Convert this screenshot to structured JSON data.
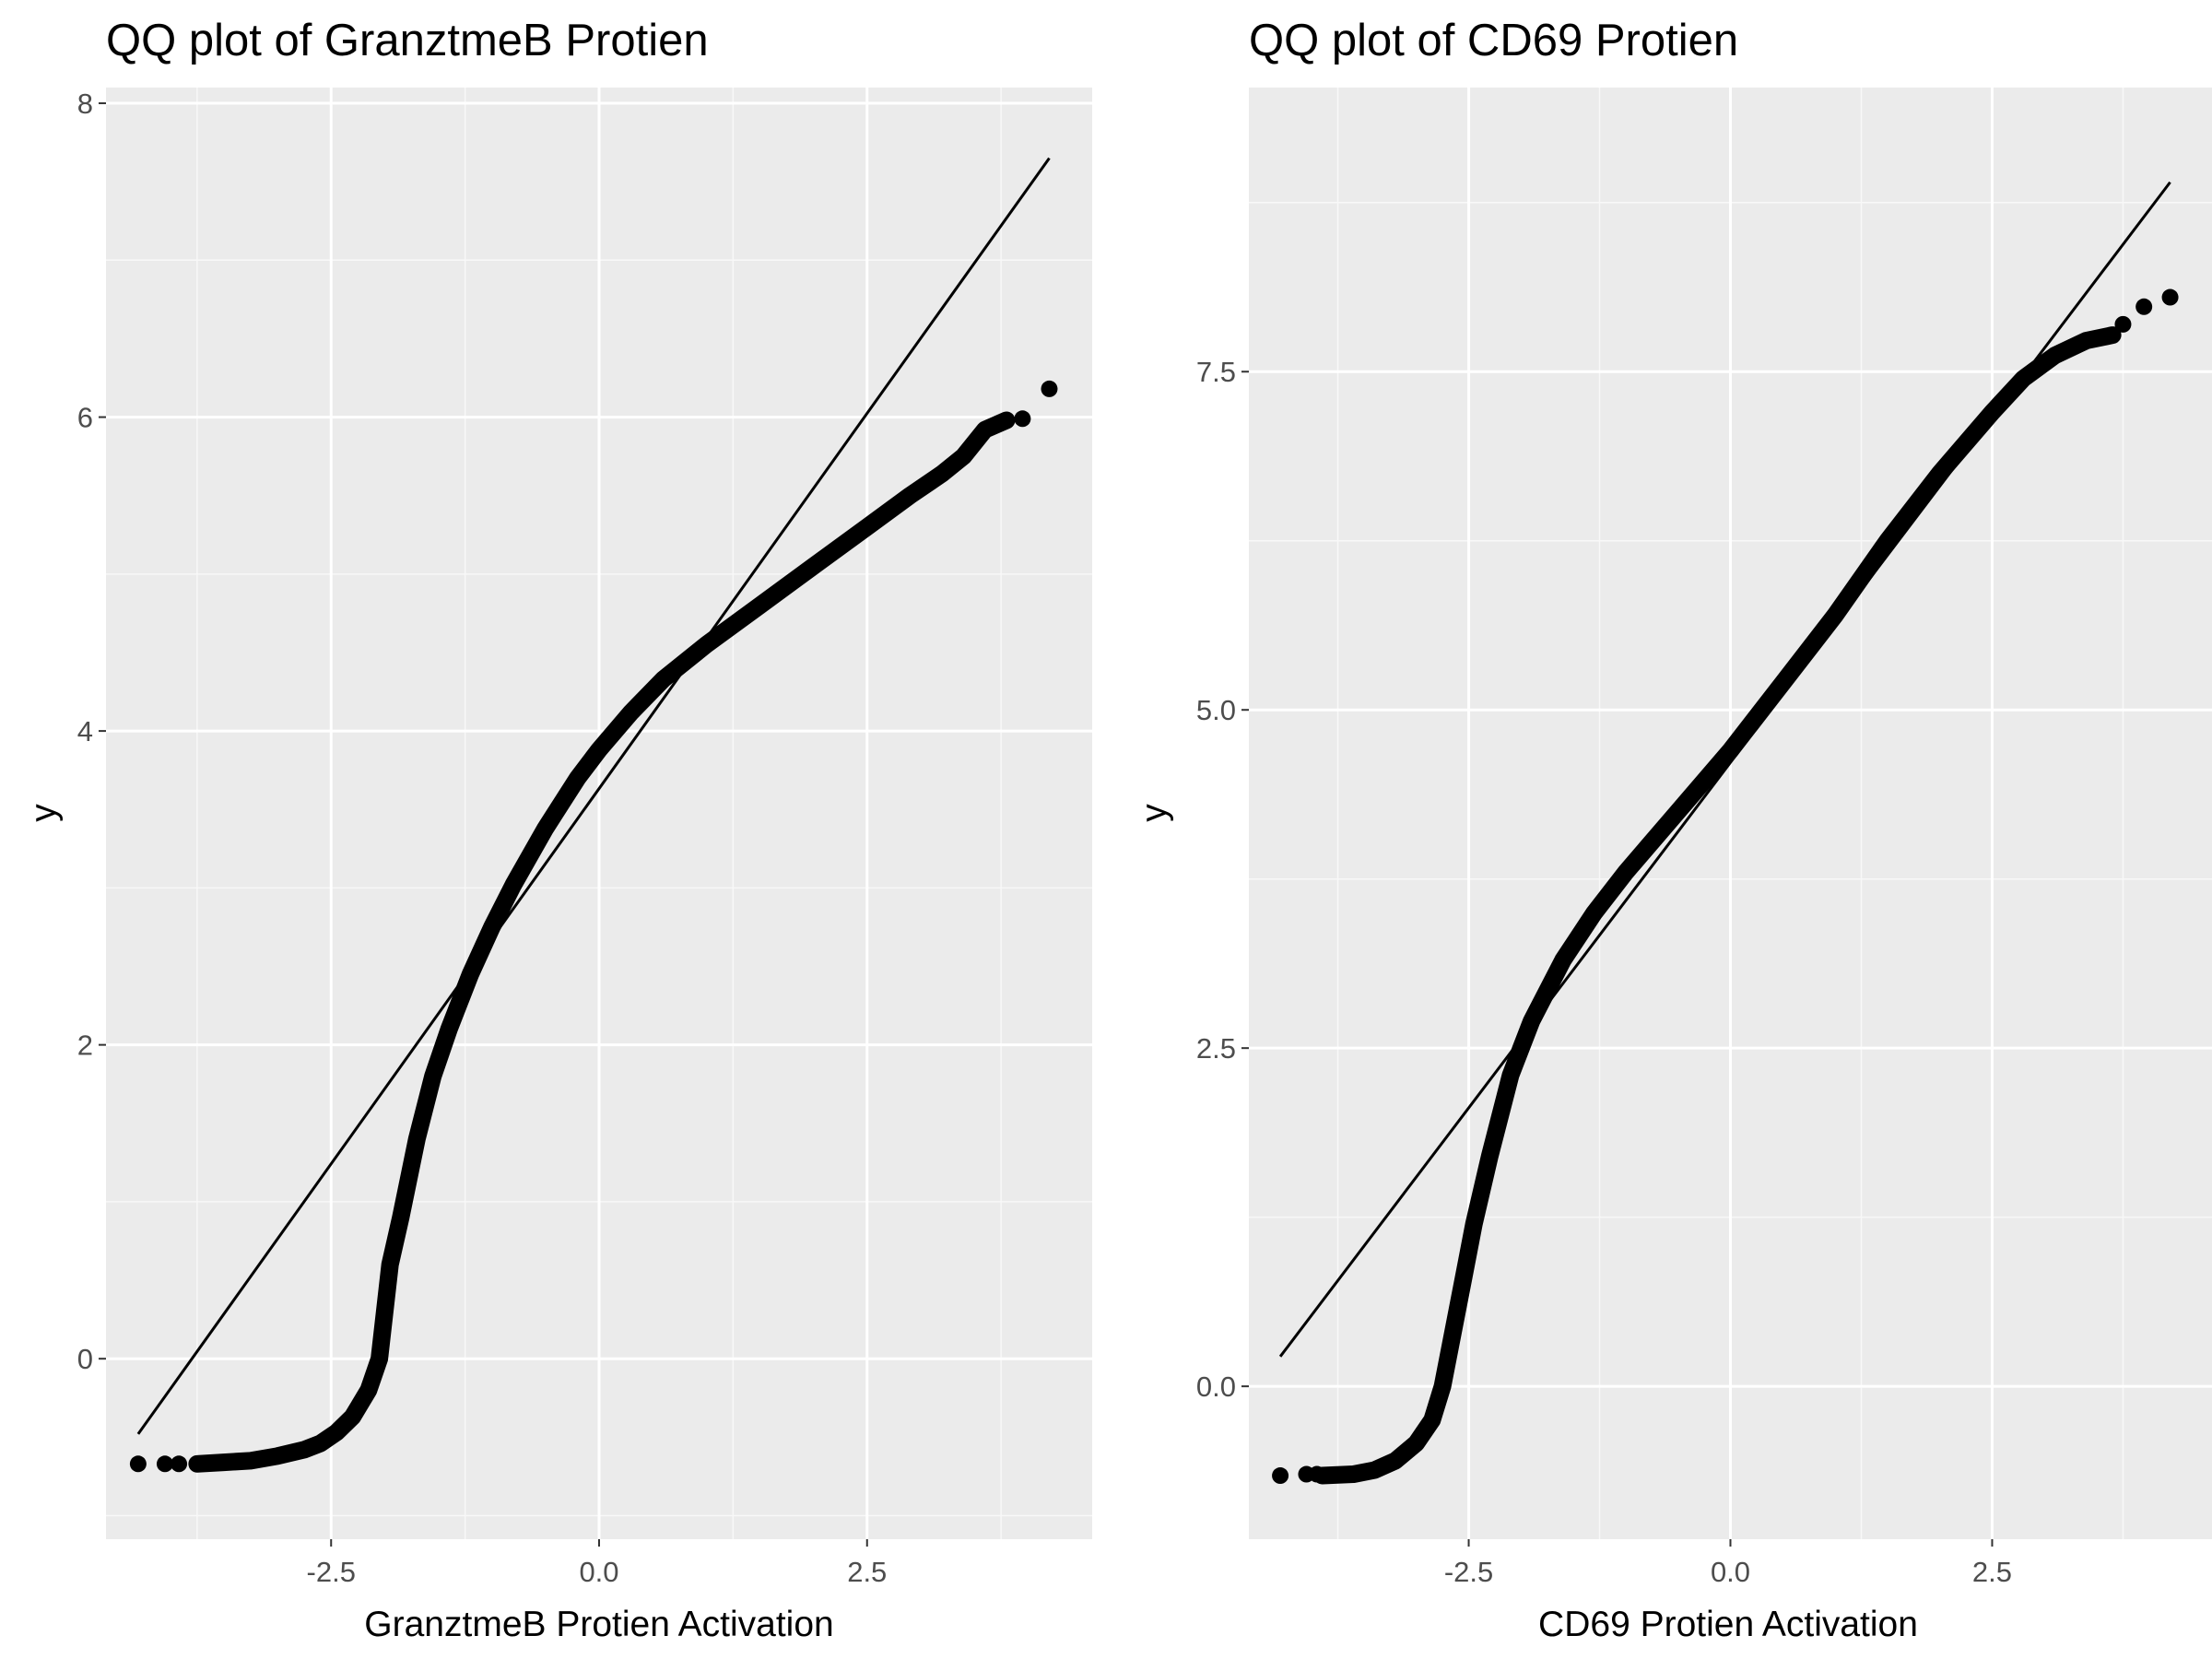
{
  "chart_data": [
    {
      "type": "scatter",
      "subtype": "qq",
      "title": "QQ plot of GranztmeB Protien",
      "xlabel": "GranztmeB Protien Activation",
      "ylabel": "y",
      "xlim": [
        -4.6,
        4.6
      ],
      "ylim": [
        -1.15,
        8.1
      ],
      "x_ticks": [
        -2.5,
        0.0,
        2.5
      ],
      "x_tick_labels": [
        "-2.5",
        "0.0",
        "2.5"
      ],
      "y_ticks": [
        0,
        2,
        4,
        6,
        8
      ],
      "y_tick_labels": [
        "0",
        "2",
        "4",
        "6",
        "8"
      ],
      "grid": true,
      "legend": "none",
      "reference_line": {
        "x": [
          -4.3,
          4.2
        ],
        "y": [
          -0.48,
          7.65
        ]
      },
      "curve_points": [
        [
          -3.75,
          -0.67
        ],
        [
          -3.5,
          -0.66
        ],
        [
          -3.25,
          -0.65
        ],
        [
          -3.0,
          -0.62
        ],
        [
          -2.75,
          -0.58
        ],
        [
          -2.6,
          -0.54
        ],
        [
          -2.45,
          -0.47
        ],
        [
          -2.3,
          -0.37
        ],
        [
          -2.15,
          -0.2
        ],
        [
          -2.05,
          0.0
        ],
        [
          -2.0,
          0.3
        ],
        [
          -1.95,
          0.6
        ],
        [
          -1.85,
          0.9
        ],
        [
          -1.7,
          1.4
        ],
        [
          -1.55,
          1.8
        ],
        [
          -1.4,
          2.1
        ],
        [
          -1.2,
          2.45
        ],
        [
          -1.0,
          2.75
        ],
        [
          -0.8,
          3.02
        ],
        [
          -0.5,
          3.38
        ],
        [
          -0.2,
          3.7
        ],
        [
          0.0,
          3.88
        ],
        [
          0.3,
          4.12
        ],
        [
          0.6,
          4.33
        ],
        [
          1.0,
          4.55
        ],
        [
          1.5,
          4.8
        ],
        [
          2.0,
          5.05
        ],
        [
          2.5,
          5.3
        ],
        [
          2.9,
          5.5
        ],
        [
          3.2,
          5.64
        ],
        [
          3.4,
          5.75
        ],
        [
          3.6,
          5.92
        ],
        [
          3.8,
          5.98
        ]
      ],
      "outlier_points": [
        [
          -4.3,
          -0.67
        ],
        [
          -4.05,
          -0.67
        ],
        [
          -3.92,
          -0.67
        ],
        [
          3.95,
          5.99
        ],
        [
          4.2,
          6.18
        ]
      ]
    },
    {
      "type": "scatter",
      "subtype": "qq",
      "title": "QQ plot of CD69 Protien",
      "xlabel": "CD69 Protien Activation",
      "ylabel": "y",
      "xlim": [
        -4.6,
        4.6
      ],
      "ylim": [
        -1.13,
        9.6
      ],
      "x_ticks": [
        -2.5,
        0.0,
        2.5
      ],
      "x_tick_labels": [
        "-2.5",
        "0.0",
        "2.5"
      ],
      "y_ticks": [
        0.0,
        2.5,
        5.0,
        7.5
      ],
      "y_tick_labels": [
        "0.0",
        "2.5",
        "5.0",
        "7.5"
      ],
      "grid": true,
      "legend": "none",
      "reference_line": {
        "x": [
          -4.3,
          4.2
        ],
        "y": [
          0.22,
          8.9
        ]
      },
      "curve_points": [
        [
          -3.9,
          -0.66
        ],
        [
          -3.6,
          -0.65
        ],
        [
          -3.4,
          -0.62
        ],
        [
          -3.2,
          -0.55
        ],
        [
          -3.0,
          -0.42
        ],
        [
          -2.85,
          -0.25
        ],
        [
          -2.75,
          0.0
        ],
        [
          -2.65,
          0.4
        ],
        [
          -2.55,
          0.8
        ],
        [
          -2.45,
          1.2
        ],
        [
          -2.3,
          1.7
        ],
        [
          -2.1,
          2.3
        ],
        [
          -1.9,
          2.7
        ],
        [
          -1.6,
          3.15
        ],
        [
          -1.3,
          3.5
        ],
        [
          -1.0,
          3.8
        ],
        [
          -0.5,
          4.25
        ],
        [
          0.0,
          4.7
        ],
        [
          0.5,
          5.2
        ],
        [
          1.0,
          5.7
        ],
        [
          1.5,
          6.25
        ],
        [
          2.0,
          6.75
        ],
        [
          2.5,
          7.2
        ],
        [
          2.8,
          7.45
        ],
        [
          3.1,
          7.62
        ],
        [
          3.4,
          7.73
        ],
        [
          3.65,
          7.77
        ]
      ],
      "outlier_points": [
        [
          -4.3,
          -0.66
        ],
        [
          -4.05,
          -0.65
        ],
        [
          -3.95,
          -0.65
        ],
        [
          3.75,
          7.85
        ],
        [
          3.95,
          7.98
        ],
        [
          4.2,
          8.05
        ]
      ]
    }
  ]
}
